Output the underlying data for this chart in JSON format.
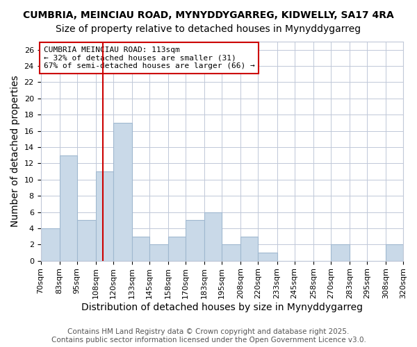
{
  "title1": "CUMBRIA, MEINCIAU ROAD, MYNYDDYGARREG, KIDWELLY, SA17 4RA",
  "title2": "Size of property relative to detached houses in Mynyddygarreg",
  "xlabel": "Distribution of detached houses by size in Mynyddygarreg",
  "ylabel": "Number of detached properties",
  "bin_labels": [
    "70sqm",
    "83sqm",
    "95sqm",
    "108sqm",
    "120sqm",
    "133sqm",
    "145sqm",
    "158sqm",
    "170sqm",
    "183sqm",
    "195sqm",
    "208sqm",
    "220sqm",
    "233sqm",
    "245sqm",
    "258sqm",
    "270sqm",
    "283sqm",
    "295sqm",
    "308sqm",
    "320sqm"
  ],
  "values": [
    4,
    13,
    5,
    11,
    17,
    3,
    2,
    3,
    5,
    6,
    2,
    3,
    1,
    0,
    0,
    0,
    2,
    0,
    0,
    2
  ],
  "bar_edges": [
    70,
    83,
    95,
    108,
    120,
    133,
    145,
    158,
    170,
    183,
    195,
    208,
    220,
    233,
    245,
    258,
    270,
    283,
    295,
    308,
    320
  ],
  "bar_color": "#c9d9e8",
  "bar_edgecolor": "#a0b8d0",
  "vline_x": 113,
  "vline_color": "#cc0000",
  "annotation_text": "CUMBRIA MEINCIAU ROAD: 113sqm\n← 32% of detached houses are smaller (31)\n67% of semi-detached houses are larger (66) →",
  "annotation_box_color": "#ffffff",
  "annotation_box_edgecolor": "#cc0000",
  "ylim": [
    0,
    27
  ],
  "yticks": [
    0,
    2,
    4,
    6,
    8,
    10,
    12,
    14,
    16,
    18,
    20,
    22,
    24,
    26
  ],
  "footnote": "Contains HM Land Registry data © Crown copyright and database right 2025.\nContains public sector information licensed under the Open Government Licence v3.0.",
  "bg_color": "#ffffff",
  "grid_color": "#c0c8d8",
  "title1_fontsize": 10,
  "title2_fontsize": 10,
  "xlabel_fontsize": 10,
  "ylabel_fontsize": 10,
  "tick_fontsize": 8,
  "footnote_fontsize": 7.5
}
